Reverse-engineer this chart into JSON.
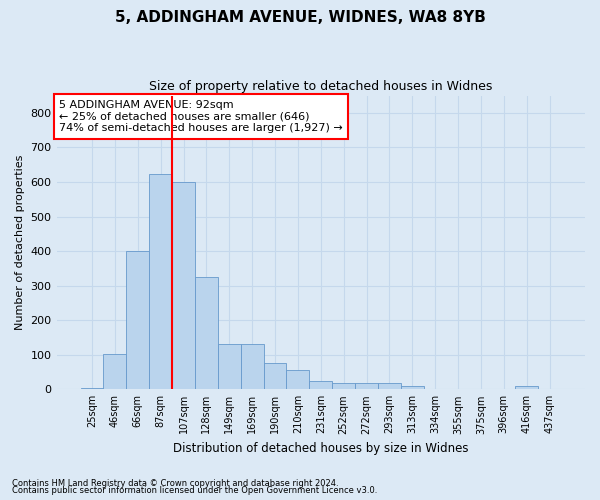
{
  "title1": "5, ADDINGHAM AVENUE, WIDNES, WA8 8YB",
  "title2": "Size of property relative to detached houses in Widnes",
  "xlabel": "Distribution of detached houses by size in Widnes",
  "ylabel": "Number of detached properties",
  "categories": [
    "25sqm",
    "46sqm",
    "66sqm",
    "87sqm",
    "107sqm",
    "128sqm",
    "149sqm",
    "169sqm",
    "190sqm",
    "210sqm",
    "231sqm",
    "252sqm",
    "272sqm",
    "293sqm",
    "313sqm",
    "334sqm",
    "355sqm",
    "375sqm",
    "396sqm",
    "416sqm",
    "437sqm"
  ],
  "values": [
    5,
    103,
    400,
    622,
    600,
    325,
    130,
    130,
    75,
    55,
    25,
    18,
    18,
    18,
    10,
    0,
    0,
    0,
    0,
    10,
    0
  ],
  "bar_color": "#bad4ed",
  "bar_edge_color": "#6699cc",
  "grid_color": "#c5d8ec",
  "background_color": "#dce9f5",
  "vline_color": "red",
  "vline_position": 3.5,
  "annotation_text": "5 ADDINGHAM AVENUE: 92sqm\n← 25% of detached houses are smaller (646)\n74% of semi-detached houses are larger (1,927) →",
  "annotation_box_color": "white",
  "annotation_box_edge": "red",
  "footer1": "Contains HM Land Registry data © Crown copyright and database right 2024.",
  "footer2": "Contains public sector information licensed under the Open Government Licence v3.0.",
  "ylim": [
    0,
    850
  ],
  "yticks": [
    0,
    100,
    200,
    300,
    400,
    500,
    600,
    700,
    800
  ]
}
